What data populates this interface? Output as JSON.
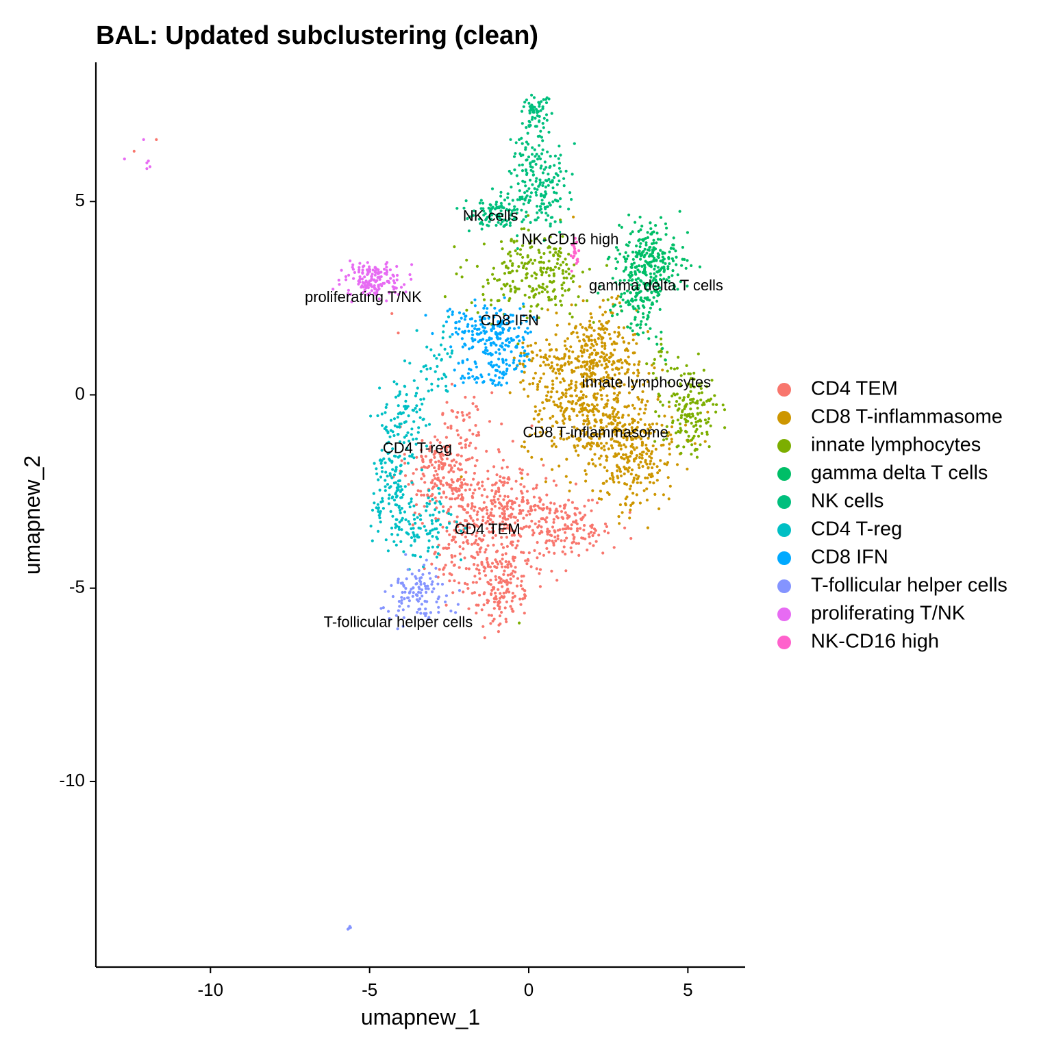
{
  "chart_data": {
    "type": "scatter",
    "title": "BAL: Updated subclustering (clean)",
    "xlabel": "umapnew_1",
    "ylabel": "umapnew_2",
    "xlim": [
      -13.6,
      6.8
    ],
    "ylim": [
      -14.8,
      8.6
    ],
    "x_ticks": [
      {
        "value": -10,
        "label": "-10"
      },
      {
        "value": -5,
        "label": "-5"
      },
      {
        "value": 0,
        "label": "0"
      },
      {
        "value": 5,
        "label": "5"
      }
    ],
    "y_ticks": [
      {
        "value": -10,
        "label": "-10"
      },
      {
        "value": -5,
        "label": "-5"
      },
      {
        "value": 0,
        "label": "0"
      },
      {
        "value": 5,
        "label": "5"
      }
    ],
    "grid": false,
    "legend_position": "right",
    "series": [
      {
        "name": "CD4 TEM",
        "color": "#F8766D",
        "blobs": [
          {
            "cx": -2.7,
            "cy": -1.9,
            "sx": 0.55,
            "sy": 0.55,
            "n": 190
          },
          {
            "cx": -0.8,
            "cy": -2.9,
            "sx": 1.1,
            "sy": 0.55,
            "n": 300
          },
          {
            "cx": 1.3,
            "cy": -3.4,
            "sx": 0.65,
            "sy": 0.35,
            "n": 130
          },
          {
            "cx": -1.2,
            "cy": -4.2,
            "sx": 0.9,
            "sy": 0.5,
            "n": 200
          },
          {
            "cx": -0.9,
            "cy": -5.3,
            "sx": 0.5,
            "sy": 0.35,
            "n": 90
          },
          {
            "cx": -1.9,
            "cy": -0.7,
            "sx": 0.4,
            "sy": 0.4,
            "n": 35
          }
        ],
        "outliers": [
          [
            -12.4,
            6.3
          ],
          [
            -11.7,
            6.6
          ],
          [
            -4.3,
            2.1
          ],
          [
            -4.1,
            1.6
          ],
          [
            -0.5,
            -1.2
          ],
          [
            0.1,
            -0.8
          ]
        ],
        "label": {
          "text": "CD4 TEM",
          "x": -1.3,
          "y": -3.5
        }
      },
      {
        "name": "CD8 T-inflammasome",
        "color": "#CD9600",
        "blobs": [
          {
            "cx": 2.2,
            "cy": 1.1,
            "sx": 0.6,
            "sy": 0.6,
            "n": 250
          },
          {
            "cx": 1.8,
            "cy": -0.3,
            "sx": 1.0,
            "sy": 0.65,
            "n": 300
          },
          {
            "cx": 3.1,
            "cy": -1.5,
            "sx": 0.8,
            "sy": 0.75,
            "n": 320
          },
          {
            "cx": 0.6,
            "cy": 0.7,
            "sx": 0.6,
            "sy": 0.4,
            "n": 70
          }
        ],
        "outliers": [
          [
            1.4,
            4.6
          ],
          [
            1.6,
            2.8
          ],
          [
            0.6,
            2.2
          ],
          [
            0.9,
            1.8
          ]
        ],
        "label": {
          "text": "CD8 T-inflammasome",
          "x": 2.1,
          "y": -1.0
        }
      },
      {
        "name": "innate lymphocytes",
        "color": "#7CAE00",
        "blobs": [
          {
            "cx": 0.1,
            "cy": 3.1,
            "sx": 0.9,
            "sy": 0.55,
            "n": 230
          },
          {
            "cx": 5.1,
            "cy": -0.5,
            "sx": 0.45,
            "sy": 0.55,
            "n": 150
          },
          {
            "cx": 4.4,
            "cy": 0.7,
            "sx": 0.3,
            "sy": 0.4,
            "n": 25
          }
        ],
        "outliers": [
          [
            -0.3,
            -5.9
          ],
          [
            -1.4,
            3.9
          ]
        ],
        "label": {
          "text": "innate lymphocytes",
          "x": 3.7,
          "y": 0.3
        }
      },
      {
        "name": "gamma delta T cells",
        "color": "#00BE67",
        "blobs": [
          {
            "cx": 3.8,
            "cy": 3.5,
            "sx": 0.5,
            "sy": 0.45,
            "n": 250
          },
          {
            "cx": 3.5,
            "cy": 2.6,
            "sx": 0.4,
            "sy": 0.35,
            "n": 90
          },
          {
            "cx": 3.4,
            "cy": 1.9,
            "sx": 0.3,
            "sy": 0.4,
            "n": 25
          }
        ],
        "outliers": [
          [
            4.2,
            1.2
          ],
          [
            4.0,
            1.5
          ],
          [
            4.3,
            0.9
          ]
        ],
        "label": {
          "text": "gamma delta T cells",
          "x": 4.0,
          "y": 2.8
        }
      },
      {
        "name": "NK cells",
        "color": "#00BF7D",
        "blobs": [
          {
            "cx": 0.2,
            "cy": 7.4,
            "sx": 0.2,
            "sy": 0.25,
            "n": 55
          },
          {
            "cx": 0.4,
            "cy": 5.4,
            "sx": 0.45,
            "sy": 0.55,
            "n": 150
          },
          {
            "cx": -1.0,
            "cy": 4.7,
            "sx": 0.45,
            "sy": 0.25,
            "n": 100
          },
          {
            "cx": 0.0,
            "cy": 6.3,
            "sx": 0.3,
            "sy": 0.35,
            "n": 35
          }
        ],
        "outliers": [
          [
            1.0,
            6.2
          ],
          [
            -0.3,
            6.6
          ],
          [
            -0.2,
            6.5
          ]
        ],
        "label": {
          "text": "NK cells",
          "x": -1.2,
          "y": 4.6
        }
      },
      {
        "name": "CD4 T-reg",
        "color": "#00BFC4",
        "blobs": [
          {
            "cx": -4.0,
            "cy": -0.8,
            "sx": 0.35,
            "sy": 0.7,
            "n": 110
          },
          {
            "cx": -4.4,
            "cy": -2.4,
            "sx": 0.3,
            "sy": 0.5,
            "n": 90
          },
          {
            "cx": -3.3,
            "cy": -3.4,
            "sx": 0.55,
            "sy": 0.4,
            "n": 110
          },
          {
            "cx": -2.9,
            "cy": 0.7,
            "sx": 0.35,
            "sy": 0.5,
            "n": 40
          }
        ],
        "outliers": [],
        "label": {
          "text": "CD4 T-reg",
          "x": -3.5,
          "y": -1.4
        }
      },
      {
        "name": "CD8 IFN",
        "color": "#00A9FF",
        "blobs": [
          {
            "cx": -0.9,
            "cy": 1.6,
            "sx": 0.6,
            "sy": 0.35,
            "n": 170
          },
          {
            "cx": -0.9,
            "cy": 0.7,
            "sx": 0.3,
            "sy": 0.25,
            "n": 45
          },
          {
            "cx": -2.0,
            "cy": 0.6,
            "sx": 0.25,
            "sy": 0.25,
            "n": 25
          },
          {
            "cx": -2.1,
            "cy": 1.8,
            "sx": 0.4,
            "sy": 0.3,
            "n": 30
          }
        ],
        "outliers": [],
        "label": {
          "text": "CD8 IFN",
          "x": -0.6,
          "y": 1.9
        }
      },
      {
        "name": "T-follicular helper cells",
        "color": "#8494FF",
        "blobs": [
          {
            "cx": -3.5,
            "cy": -5.1,
            "sx": 0.5,
            "sy": 0.35,
            "n": 110
          }
        ],
        "outliers": [
          [
            -5.65,
            -13.8
          ],
          [
            -5.62,
            -13.75
          ],
          [
            -5.68,
            -13.82
          ],
          [
            -5.6,
            -13.78
          ]
        ],
        "label": {
          "text": "T-follicular helper cells",
          "x": -4.1,
          "y": -5.9
        }
      },
      {
        "name": "proliferating T/NK",
        "color": "#E76BF3",
        "blobs": [
          {
            "cx": -4.8,
            "cy": 3.0,
            "sx": 0.5,
            "sy": 0.22,
            "n": 150
          }
        ],
        "outliers": [
          [
            -12.1,
            6.6
          ],
          [
            -12.7,
            6.1
          ],
          [
            -12.0,
            6.0
          ],
          [
            -11.9,
            5.9
          ],
          [
            -12.0,
            5.85
          ],
          [
            -11.95,
            6.05
          ]
        ],
        "label": {
          "text": "proliferating T/NK",
          "x": -5.2,
          "y": 2.5
        }
      },
      {
        "name": "NK-CD16 high",
        "color": "#FF61CC",
        "blobs": [
          {
            "cx": 1.45,
            "cy": 3.7,
            "sx": 0.06,
            "sy": 0.15,
            "n": 20
          }
        ],
        "outliers": [
          [
            1.35,
            3.2
          ],
          [
            1.5,
            3.4
          ]
        ],
        "label": {
          "text": "NK-CD16 high",
          "x": 1.3,
          "y": 4.0
        }
      }
    ]
  }
}
